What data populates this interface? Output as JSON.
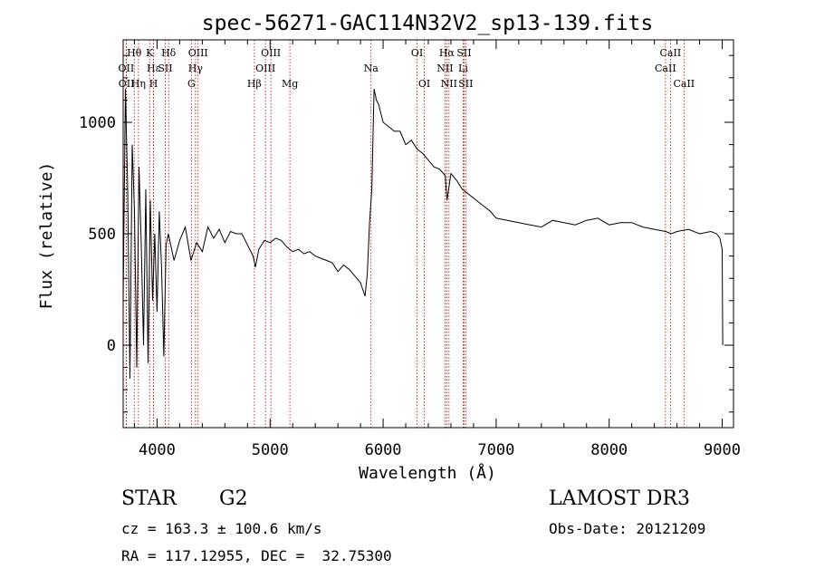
{
  "chart_data": {
    "type": "line",
    "title": "spec-56271-GAC114N32V2_sp13-139.fits",
    "xlabel": "Wavelength (Å)",
    "ylabel": "Flux (relative)",
    "xlim": [
      3700,
      9100
    ],
    "ylim": [
      -370,
      1370
    ],
    "x_ticks": [
      4000,
      5000,
      6000,
      7000,
      8000,
      9000
    ],
    "x_tick_labels": [
      "4000",
      "5000",
      "6000",
      "7000",
      "8000",
      "9000"
    ],
    "y_ticks": [
      0,
      500,
      1000
    ],
    "y_tick_labels": [
      "0",
      "500",
      "1000"
    ],
    "grid": false,
    "series": [
      {
        "name": "flux",
        "x": [
          3700,
          3720,
          3740,
          3760,
          3780,
          3800,
          3820,
          3840,
          3860,
          3880,
          3900,
          3920,
          3940,
          3960,
          3980,
          4000,
          4020,
          4040,
          4060,
          4080,
          4100,
          4150,
          4200,
          4250,
          4300,
          4350,
          4400,
          4450,
          4500,
          4550,
          4600,
          4650,
          4700,
          4750,
          4800,
          4850,
          4870,
          4900,
          4950,
          5000,
          5050,
          5100,
          5150,
          5200,
          5250,
          5300,
          5350,
          5400,
          5450,
          5500,
          5550,
          5600,
          5650,
          5700,
          5750,
          5800,
          5840,
          5860,
          5880,
          5900,
          5920,
          5940,
          5960,
          6000,
          6050,
          6100,
          6150,
          6200,
          6250,
          6300,
          6350,
          6400,
          6450,
          6500,
          6550,
          6565,
          6600,
          6650,
          6700,
          6750,
          6800,
          6850,
          6900,
          6950,
          7000,
          7100,
          7200,
          7300,
          7400,
          7500,
          7600,
          7700,
          7800,
          7900,
          8000,
          8100,
          8200,
          8300,
          8400,
          8500,
          8550,
          8600,
          8700,
          8800,
          8900,
          8950,
          8980,
          9000,
          9005
        ],
        "y": [
          200,
          1150,
          700,
          -150,
          900,
          600,
          -100,
          800,
          450,
          0,
          700,
          -80,
          650,
          200,
          500,
          150,
          600,
          350,
          -50,
          450,
          500,
          380,
          470,
          530,
          380,
          460,
          420,
          530,
          480,
          520,
          460,
          510,
          500,
          500,
          450,
          400,
          350,
          430,
          470,
          460,
          480,
          470,
          440,
          420,
          430,
          410,
          420,
          400,
          390,
          380,
          370,
          330,
          360,
          340,
          310,
          280,
          220,
          320,
          550,
          700,
          1150,
          1100,
          1080,
          1000,
          980,
          960,
          960,
          900,
          920,
          880,
          860,
          830,
          800,
          790,
          760,
          650,
          770,
          740,
          700,
          680,
          660,
          640,
          620,
          600,
          570,
          560,
          550,
          540,
          530,
          560,
          550,
          540,
          560,
          570,
          540,
          550,
          550,
          530,
          520,
          510,
          500,
          510,
          520,
          500,
          510,
          500,
          480,
          430,
          0
        ]
      }
    ],
    "lines": [
      {
        "name": "Hθ",
        "wavelength": 3798,
        "row": 1
      },
      {
        "name": "OII",
        "wavelength": 3727,
        "row": 2
      },
      {
        "name": "OII",
        "wavelength": 3729,
        "row": 3
      },
      {
        "name": "Hε",
        "wavelength": 3970,
        "row": 2
      },
      {
        "name": "Hη",
        "wavelength": 3835,
        "row": 3
      },
      {
        "name": "K",
        "wavelength": 3934,
        "row": 1
      },
      {
        "name": "H",
        "wavelength": 3969,
        "row": 3
      },
      {
        "name": "SII",
        "wavelength": 4072,
        "row": 2
      },
      {
        "name": "Hδ",
        "wavelength": 4102,
        "row": 1
      },
      {
        "name": "OIII",
        "wavelength": 4363,
        "row": 1
      },
      {
        "name": "Hγ",
        "wavelength": 4340,
        "row": 2
      },
      {
        "name": "G",
        "wavelength": 4304,
        "row": 3
      },
      {
        "name": "Hβ",
        "wavelength": 4861,
        "row": 3
      },
      {
        "name": "OIII",
        "wavelength": 5007,
        "row": 1
      },
      {
        "name": "OIII",
        "wavelength": 4959,
        "row": 2
      },
      {
        "name": "Mg",
        "wavelength": 5175,
        "row": 3
      },
      {
        "name": "Na",
        "wavelength": 5893,
        "row": 2
      },
      {
        "name": "OI",
        "wavelength": 6300,
        "row": 1
      },
      {
        "name": "OI",
        "wavelength": 6364,
        "row": 3
      },
      {
        "name": "Hα",
        "wavelength": 6563,
        "row": 1
      },
      {
        "name": "NII",
        "wavelength": 6548,
        "row": 2
      },
      {
        "name": "NII",
        "wavelength": 6583,
        "row": 3
      },
      {
        "name": "SII",
        "wavelength": 6716,
        "row": 1
      },
      {
        "name": "Li",
        "wavelength": 6708,
        "row": 2
      },
      {
        "name": "SII",
        "wavelength": 6731,
        "row": 3
      },
      {
        "name": "CaII",
        "wavelength": 8542,
        "row": 1
      },
      {
        "name": "CaII",
        "wavelength": 8498,
        "row": 2
      },
      {
        "name": "CaII",
        "wavelength": 8662,
        "row": 3
      }
    ]
  },
  "info": {
    "object_class": "STAR",
    "subclass": "G2",
    "survey": "LAMOST DR3",
    "cz": "cz = 163.3 ± 100.6 km/s",
    "obs_date": "Obs-Date: 20121209",
    "coords": "RA = 117.12955, DEC =  32.75300"
  },
  "colors": {
    "line": "#000000",
    "marker_line": "#c00000",
    "background": "#ffffff"
  }
}
